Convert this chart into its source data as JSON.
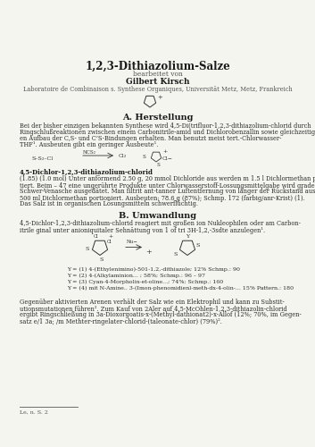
{
  "title": "1,2,3-Dithiazolium-Salze",
  "subtitle_von": "bearbeitet von",
  "author": "Gilbert Kirsch",
  "affiliation": "Laboratoire de Combinaison s. Synthese Organiques, Universität Metz, Metz, Frankreich",
  "section_A": "A. Herstellung",
  "section_B": "B. Umwandlung",
  "para_A_lines": [
    "Bei der bisher einzigen bekannten Synthese wird 4,5-Di(trifluor-1,2,3-dithiazolium-chlorid durch",
    "Ringschlußreaktionen zwischen einem Carbonitrile-amid und Dichlorobenzallin sowie gleichzeitig-",
    "en Aufbau der C,S- und C’S-Bindungen erhalten. Man benutzt meist tert.-Chlorwasser-",
    "THF¹. Ausbeuten gibt ein geringer Ausbeute¹."
  ],
  "para_A2_bold": "4,5-Dichlor-1,2,3-dithiazolium-chlorid",
  "para_A2_lines": [
    "(1.85) (1.0 mol) Unter anförmend 2.50 g, 20 mmol Dichloride aus werden m 1.5 l Dichlormethan por-",
    "tiert. Beim – 47 eine ungerührte Produkte unter Chlorwasserstoff-Lossungsmittelgabe wird graded",
    "Schwer-Venasche ausgedätet. Man filtrit ant-tanner Luftentfernung von länger der Rückstand aus",
    "500 ml Dichlormethan portioniert. Ausbeuten: 78.6 g (87%); Schmp. 172 (farbig/anr-Krist) (1).",
    "Das Salz ist in organischen Lösungsmitteln schwerflüchtig."
  ],
  "para_B_lines": [
    "4,5-Dichlor-1,2,3-dithiazolium-chlorid reagiert mit großen ion Nukleophilen oder am Carbon-",
    "itrile ginal unter anioniquitaler Sehnättung von 1 of tri 3H-1,2,-3sdte anzulegen¹."
  ],
  "y_lines": [
    "Y = (1) 4-(Ethylenimino)-501-1,2,-dithiazole; 12% Schmp.: 90",
    "Y = (2) 4-(Alkylaminion... ; 58%; Schmp.: 96 – 97",
    "Y = (3) Cyan-4-Morpholin-et-oline...; 74%; Schmp.: 160",
    "Y = (4) mit N-Amine.. 3-(Imon-phenomidienl-meth-dx-4-olin-... 15% Pattern.: 180"
  ],
  "para_C_lines": [
    "Gegenüber aktivierten Arenen verhält der Salz wie ein Elektrophil und kann zu Substit-",
    "utionsmutationen führen². Zum Kauf von 2Aler auf 4,5-McOhlen-1,2,3-dithiazolin-chlorid",
    "ergibt Ringschließung in 3a-Dioxorgoatis-x-(Methyl-dathionat2)-x-Allof (12%; 70%, im Gegen-",
    "satz e/1 3a; /m Methter-ringelater-chlorid-(taleonate-chlor) (79%)²."
  ],
  "footnote": "Le, n. S. 2",
  "bg_color": "#f5f5f0",
  "text_color": "#2a2a2a",
  "title_color": "#1a1a1a"
}
